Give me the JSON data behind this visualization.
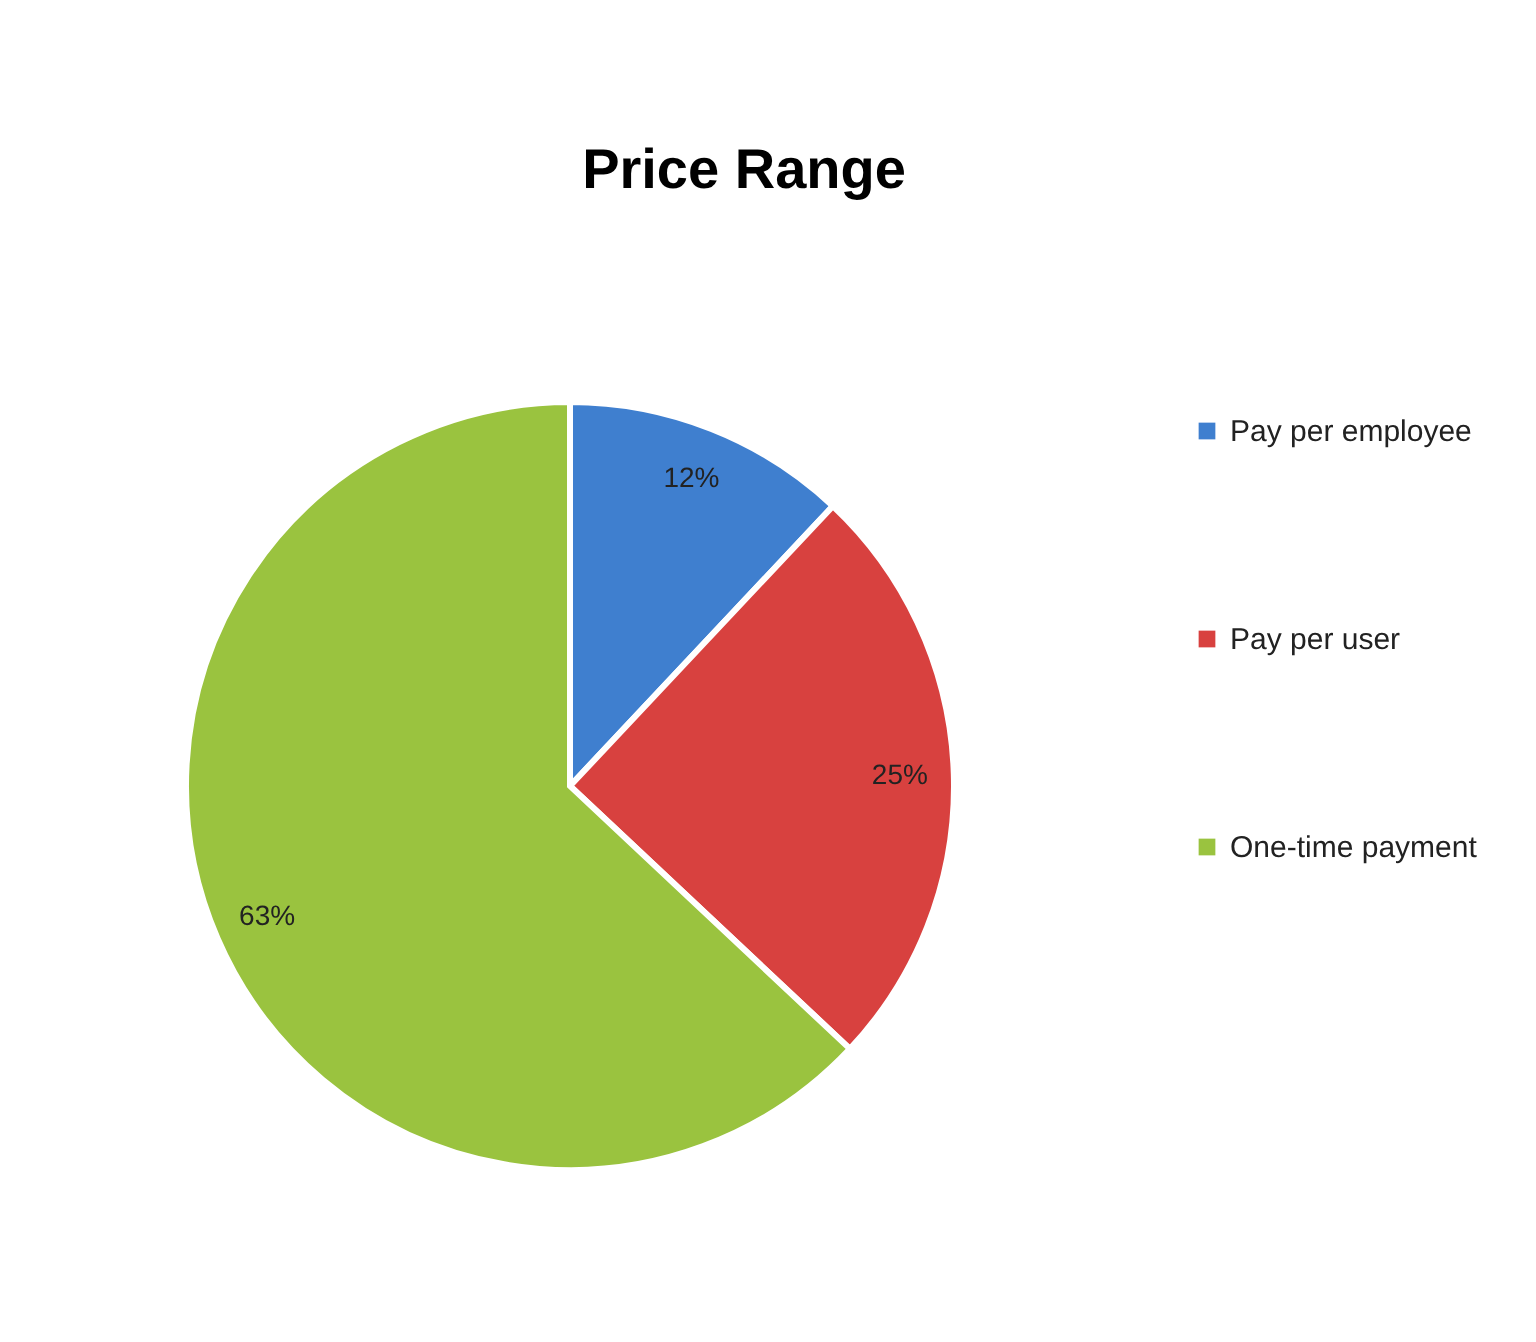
{
  "chart_data": {
    "type": "pie",
    "title": "Price Range",
    "categories": [
      "Pay per employee",
      "Pay per user",
      "One-time payment"
    ],
    "values": [
      12,
      25,
      63
    ],
    "colors": [
      "#3f7fcf",
      "#d8413f",
      "#9ac33f"
    ],
    "value_labels": [
      "12%",
      "25%",
      "63%"
    ],
    "legend": "right"
  }
}
